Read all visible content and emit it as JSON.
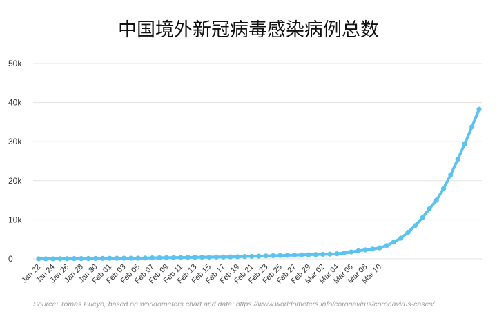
{
  "chart_data": {
    "type": "line",
    "title": "中国境外新冠病毒感染病例总数",
    "source": "Source: Tomas Pueyo, based on worldometers chart and data: https://www.worldometers.info/coronavirus/coronavirus-cases/",
    "ylim": [
      0,
      50000
    ],
    "y_ticks": [
      {
        "value": 0,
        "label": "0"
      },
      {
        "value": 10000,
        "label": "10k"
      },
      {
        "value": 20000,
        "label": "20k"
      },
      {
        "value": 30000,
        "label": "30k"
      },
      {
        "value": 40000,
        "label": "40k"
      },
      {
        "value": 50000,
        "label": "50k"
      }
    ],
    "x_tick_labels": [
      "Jan 22",
      "Jan 24",
      "Jan 26",
      "Jan 28",
      "Jan 30",
      "Feb 01",
      "Feb 03",
      "Feb 05",
      "Feb 07",
      "Feb 09",
      "Feb 11",
      "Feb 13",
      "Feb 15",
      "Feb 17",
      "Feb 19",
      "Feb 21",
      "Feb 23",
      "Feb 25",
      "Feb 27",
      "Feb 29",
      "Mar 02",
      "Mar 04",
      "Mar 06",
      "Mar 08",
      "Mar 10"
    ],
    "grid": true,
    "legend": "none",
    "color": "#5bc3ef",
    "series": [
      {
        "values": [
          7,
          10,
          14,
          20,
          40,
          60,
          75,
          85,
          100,
          120,
          140,
          150,
          160,
          170,
          180,
          200,
          240,
          280,
          300,
          320,
          350,
          380,
          400,
          420,
          440,
          470,
          480,
          510,
          540,
          590,
          630,
          690,
          750,
          800,
          850,
          900,
          950,
          1000,
          1050,
          1100,
          1150,
          1200,
          1300,
          1500,
          1750,
          2050,
          2300,
          2500,
          2800,
          3400,
          4300,
          5300,
          6800,
          8500,
          10500,
          12800,
          15000,
          18000,
          21500,
          25500,
          29500,
          33800,
          38300
        ]
      }
    ]
  }
}
